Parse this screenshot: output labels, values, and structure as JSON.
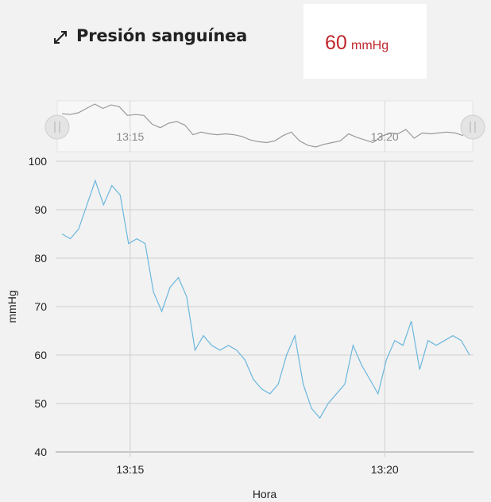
{
  "header": {
    "title": "Presión sanguínea",
    "current_value": "60",
    "current_unit": "mmHg",
    "expand_icon": "expand-icon"
  },
  "colors": {
    "series": "#6bb7dd",
    "navigator": "#9a9a9a",
    "value": "#c0272d",
    "grid": "#cfcfcf"
  },
  "chart_data": {
    "type": "line",
    "title": "",
    "xlabel": "Hora",
    "ylabel": "mmHg",
    "ylim": [
      40,
      100
    ],
    "yticks": [
      40,
      50,
      60,
      70,
      80,
      90,
      100
    ],
    "xticks": [
      "13:15",
      "13:20"
    ],
    "grid": true,
    "series": [
      {
        "values": [
          85,
          84,
          86,
          91,
          96,
          91,
          95,
          93,
          83,
          84,
          83,
          73,
          69,
          74,
          76,
          72,
          61,
          64,
          62,
          61,
          62,
          61,
          59,
          55,
          53,
          52,
          54,
          60,
          64,
          54,
          49,
          47,
          50,
          52,
          54,
          62,
          58,
          55,
          52,
          59,
          63,
          62,
          67,
          57,
          63,
          62,
          63,
          64,
          63,
          60
        ]
      }
    ],
    "navigator": {
      "xticks": [
        "13:15",
        "13:20"
      ]
    }
  }
}
